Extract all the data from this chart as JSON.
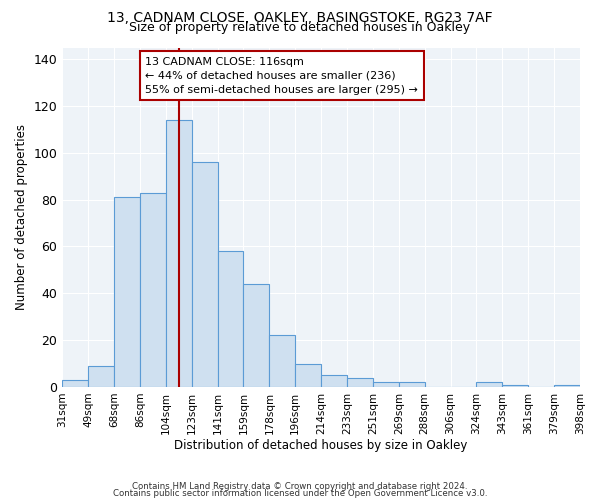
{
  "title1": "13, CADNAM CLOSE, OAKLEY, BASINGSTOKE, RG23 7AF",
  "title2": "Size of property relative to detached houses in Oakley",
  "xlabel": "Distribution of detached houses by size in Oakley",
  "ylabel": "Number of detached properties",
  "bin_edges": [
    "31sqm",
    "49sqm",
    "68sqm",
    "86sqm",
    "104sqm",
    "123sqm",
    "141sqm",
    "159sqm",
    "178sqm",
    "196sqm",
    "214sqm",
    "233sqm",
    "251sqm",
    "269sqm",
    "288sqm",
    "306sqm",
    "324sqm",
    "343sqm",
    "361sqm",
    "379sqm",
    "398sqm"
  ],
  "bar_heights": [
    3,
    9,
    81,
    83,
    114,
    96,
    58,
    44,
    22,
    10,
    5,
    4,
    2,
    2,
    0,
    0,
    2,
    1,
    0,
    1
  ],
  "bar_color": "#cfe0f0",
  "bar_edge_color": "#5b9bd5",
  "vline_position": 4.5,
  "vline_color": "#aa0000",
  "annotation_title": "13 CADNAM CLOSE: 116sqm",
  "annotation_line2": "← 44% of detached houses are smaller (236)",
  "annotation_line3": "55% of semi-detached houses are larger (295) →",
  "annotation_box_edge": "#aa0000",
  "ylim": [
    0,
    145
  ],
  "yticks": [
    0,
    20,
    40,
    60,
    80,
    100,
    120,
    140
  ],
  "footer1": "Contains HM Land Registry data © Crown copyright and database right 2024.",
  "footer2": "Contains public sector information licensed under the Open Government Licence v3.0."
}
